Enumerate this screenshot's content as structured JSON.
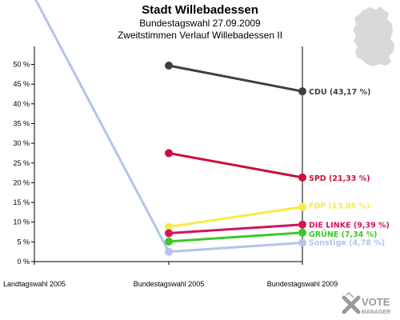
{
  "header": {
    "title": "Stadt Willebadessen",
    "subtitle_1": "Bundestagswahl 27.09.2009",
    "subtitle_2": "Zweitstimmen Verlauf Willebadessen II"
  },
  "watermark": {
    "brand_top": "VOTE",
    "brand_bottom": "MANAGER",
    "icon": "votemanager-x-icon"
  },
  "map_icon": "germany-map-icon",
  "chart_data": {
    "type": "line",
    "title": "Stadt Willebadessen",
    "subtitle": [
      "Bundestagswahl 27.09.2009",
      "Zweitstimmen Verlauf Willebadessen II"
    ],
    "categories": [
      "Landtagswahl 2005",
      "Bundestagswahl 2005",
      "Bundestagswahl 2009"
    ],
    "ylim": [
      0,
      50
    ],
    "yticks": [
      0,
      5,
      10,
      15,
      20,
      25,
      30,
      35,
      40,
      45,
      50
    ],
    "ytick_labels": [
      "0 %",
      "5 %",
      "10 %",
      "15 %",
      "20 %",
      "25 %",
      "30 %",
      "35 %",
      "40 %",
      "45 %",
      "50 %"
    ],
    "grid": false,
    "series": [
      {
        "label": "Sonstige (4,78 %)",
        "color": "#b4c3ec",
        "values": [
          67.0,
          2.5,
          4.78
        ]
      },
      {
        "label": "CDU (43,17 %)",
        "color": "#404040",
        "values": [
          null,
          49.7,
          43.17
        ]
      },
      {
        "label": "SPD (21,33 %)",
        "color": "#c8103c",
        "values": [
          null,
          27.5,
          21.33
        ]
      },
      {
        "label": "FDP (13,86 %)",
        "color": "#f8ec44",
        "values": [
          null,
          8.8,
          13.86
        ]
      },
      {
        "label": "DIE LINKE (9,39 %)",
        "color": "#d4145a",
        "values": [
          null,
          7.2,
          9.39
        ]
      },
      {
        "label": "GRÜNE (7,34 %)",
        "color": "#3cc828",
        "values": [
          null,
          5.1,
          7.34
        ]
      }
    ]
  }
}
